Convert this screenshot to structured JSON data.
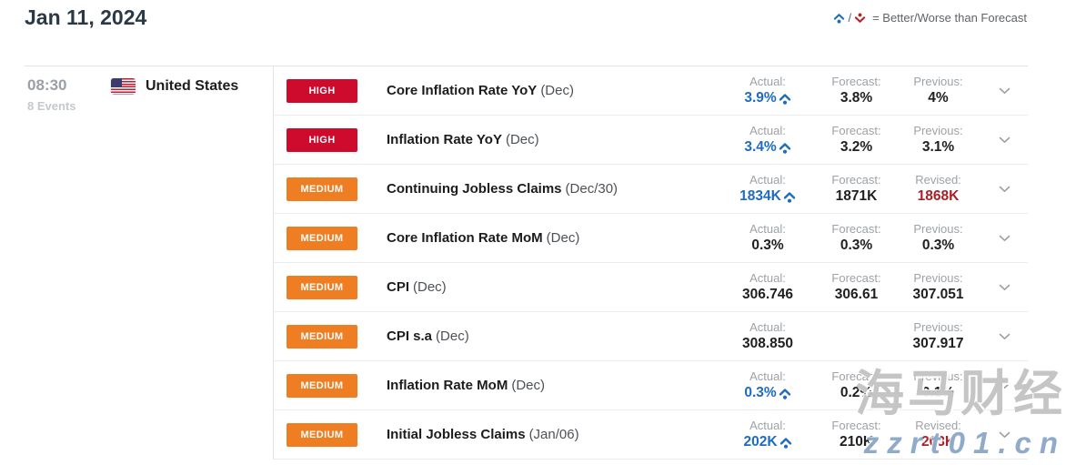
{
  "header": {
    "date_title": "Jan 11, 2024",
    "legend": {
      "slash": "/",
      "text": "= Better/Worse than Forecast"
    }
  },
  "group": {
    "time": "08:30",
    "events_count": "8 Events",
    "country": "United States"
  },
  "colors": {
    "high_badge": "#ce0b2d",
    "medium_badge": "#ef7d22",
    "better_blue": "#1e6cc0",
    "revised_red": "#a92127",
    "title_navy": "#2b3947"
  },
  "rows": [
    {
      "impact": "HIGH",
      "impact_level": "high",
      "name": "Core Inflation Rate YoY",
      "period": "(Dec)",
      "actual_label": "Actual:",
      "actual": "3.9%",
      "actual_better": true,
      "forecast_label": "Forecast:",
      "forecast": "3.8%",
      "third_label": "Previous:",
      "third": "4%",
      "third_revised": false
    },
    {
      "impact": "HIGH",
      "impact_level": "high",
      "name": "Inflation Rate YoY",
      "period": "(Dec)",
      "actual_label": "Actual:",
      "actual": "3.4%",
      "actual_better": true,
      "forecast_label": "Forecast:",
      "forecast": "3.2%",
      "third_label": "Previous:",
      "third": "3.1%",
      "third_revised": false
    },
    {
      "impact": "MEDIUM",
      "impact_level": "medium",
      "name": "Continuing Jobless Claims",
      "period": "(Dec/30)",
      "actual_label": "Actual:",
      "actual": "1834K",
      "actual_better": true,
      "forecast_label": "Forecast:",
      "forecast": "1871K",
      "third_label": "Revised:",
      "third": "1868K",
      "third_revised": true
    },
    {
      "impact": "MEDIUM",
      "impact_level": "medium",
      "name": "Core Inflation Rate MoM",
      "period": "(Dec)",
      "actual_label": "Actual:",
      "actual": "0.3%",
      "actual_better": false,
      "forecast_label": "Forecast:",
      "forecast": "0.3%",
      "third_label": "Previous:",
      "third": "0.3%",
      "third_revised": false
    },
    {
      "impact": "MEDIUM",
      "impact_level": "medium",
      "name": "CPI",
      "period": "(Dec)",
      "actual_label": "Actual:",
      "actual": "306.746",
      "actual_better": false,
      "forecast_label": "Forecast:",
      "forecast": "306.61",
      "third_label": "Previous:",
      "third": "307.051",
      "third_revised": false
    },
    {
      "impact": "MEDIUM",
      "impact_level": "medium",
      "name": "CPI s.a",
      "period": "(Dec)",
      "actual_label": "Actual:",
      "actual": "308.850",
      "actual_better": false,
      "forecast_label": "",
      "forecast": "",
      "third_label": "Previous:",
      "third": "307.917",
      "third_revised": false
    },
    {
      "impact": "MEDIUM",
      "impact_level": "medium",
      "name": "Inflation Rate MoM",
      "period": "(Dec)",
      "actual_label": "Actual:",
      "actual": "0.3%",
      "actual_better": true,
      "forecast_label": "Forecast:",
      "forecast": "0.2%",
      "third_label": "Previous:",
      "third": "0.1%",
      "third_revised": false
    },
    {
      "impact": "MEDIUM",
      "impact_level": "medium",
      "name": "Initial Jobless Claims",
      "period": "(Jan/06)",
      "actual_label": "Actual:",
      "actual": "202K",
      "actual_better": true,
      "forecast_label": "Forecast:",
      "forecast": "210K",
      "third_label": "Revised:",
      "third": "203K",
      "third_revised": true
    }
  ],
  "watermark": {
    "line1": "海马财经",
    "line2": "zzrt01.cn"
  }
}
